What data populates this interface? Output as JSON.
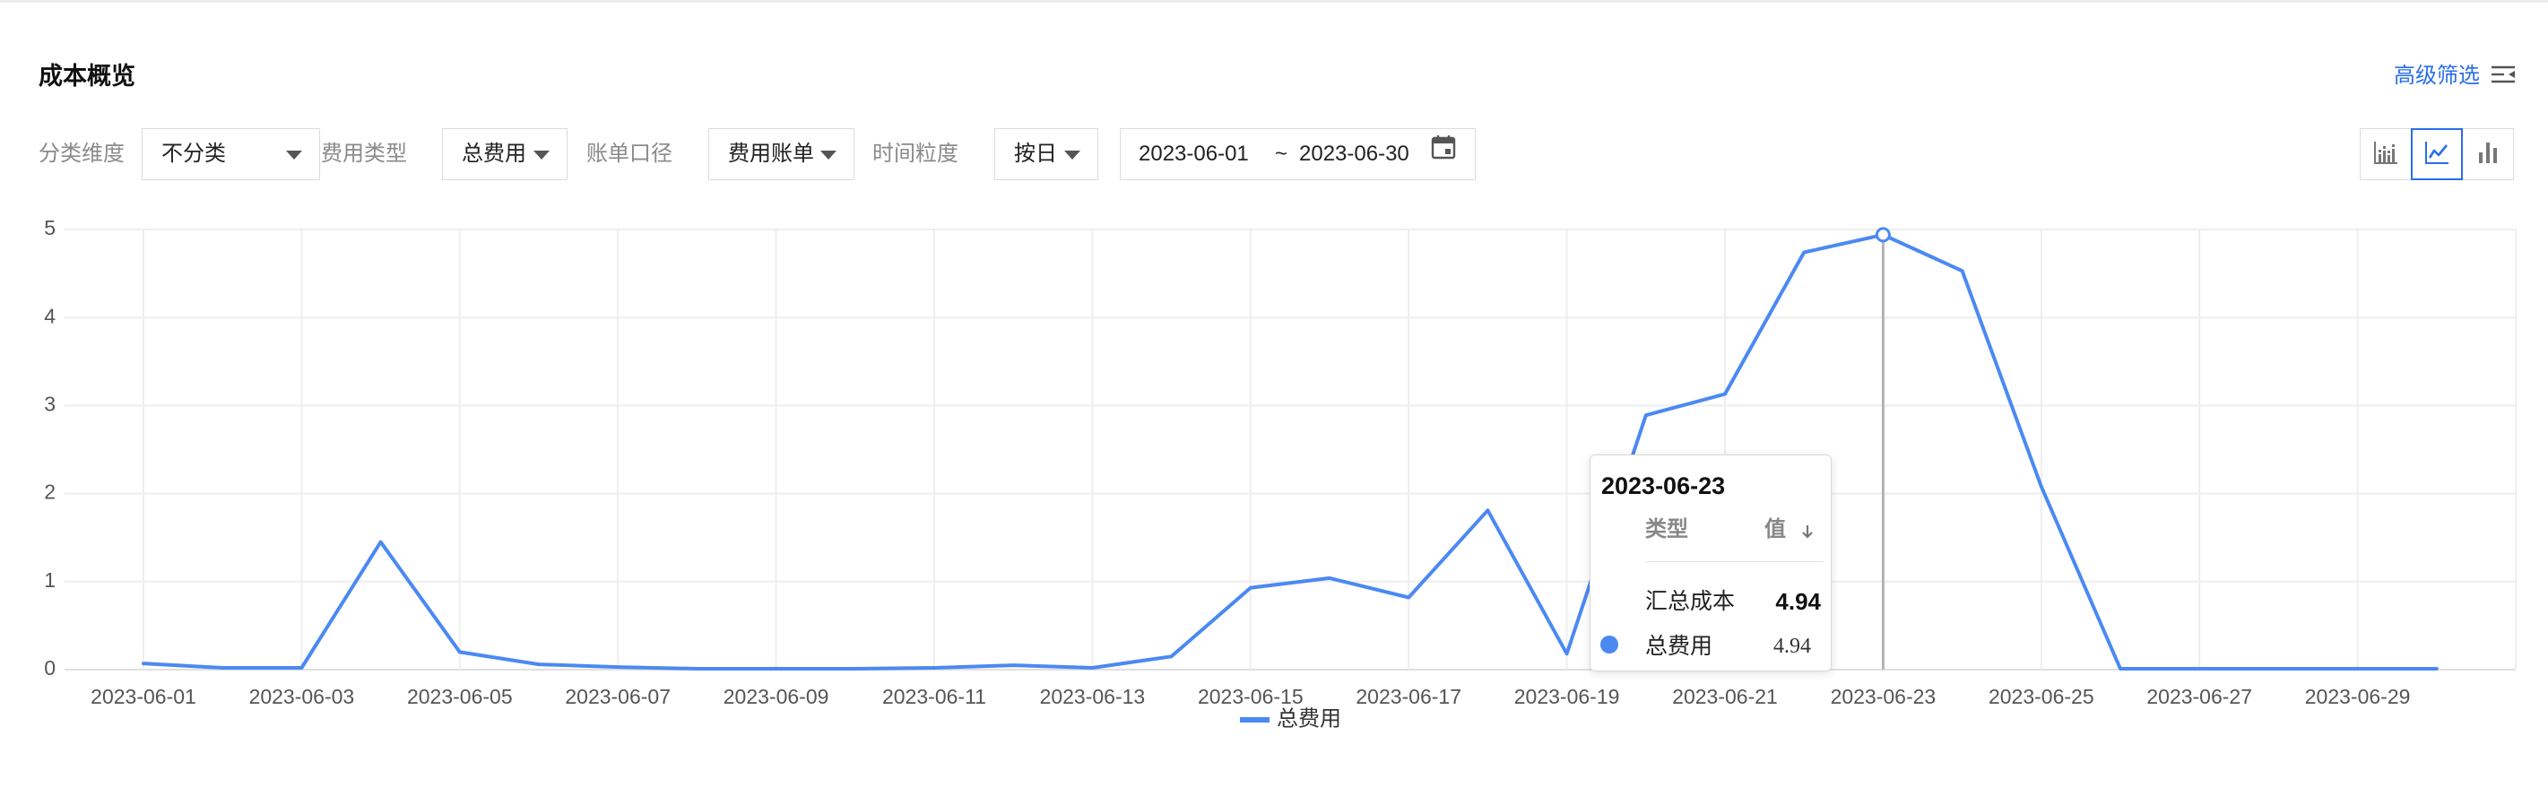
{
  "header": {
    "title": "成本概览",
    "advanced_filter_label": "高级筛选",
    "advanced_filter_icon": "filter-list-icon"
  },
  "filters": [
    {
      "label": "分类维度",
      "value": "不分类"
    },
    {
      "label": "费用类型",
      "value": "总费用"
    },
    {
      "label": "账单口径",
      "value": "费用账单"
    },
    {
      "label": "时间粒度",
      "value": "按日"
    }
  ],
  "date_range": {
    "start": "2023-06-01",
    "separator": "~",
    "end": "2023-06-30",
    "icon": "calendar-icon"
  },
  "chart_type_toggle": {
    "options": [
      {
        "icon": "stacked-bar-chart-icon",
        "active": false
      },
      {
        "icon": "line-chart-icon",
        "active": true
      },
      {
        "icon": "bar-chart-icon",
        "active": false
      }
    ]
  },
  "colors": {
    "accent": "#2a6ee9",
    "series": "#4b89f2",
    "gridline": "#eeeeee",
    "muted_label": "#8a8a8a"
  },
  "chart_data": {
    "type": "line",
    "x": [
      "2023-06-01",
      "2023-06-02",
      "2023-06-03",
      "2023-06-04",
      "2023-06-05",
      "2023-06-06",
      "2023-06-07",
      "2023-06-08",
      "2023-06-09",
      "2023-06-10",
      "2023-06-11",
      "2023-06-12",
      "2023-06-13",
      "2023-06-14",
      "2023-06-15",
      "2023-06-16",
      "2023-06-17",
      "2023-06-18",
      "2023-06-19",
      "2023-06-20",
      "2023-06-21",
      "2023-06-22",
      "2023-06-23",
      "2023-06-24",
      "2023-06-25",
      "2023-06-26",
      "2023-06-27",
      "2023-06-28",
      "2023-06-29",
      "2023-06-30"
    ],
    "xticks": [
      "2023-06-01",
      "2023-06-03",
      "2023-06-05",
      "2023-06-07",
      "2023-06-09",
      "2023-06-11",
      "2023-06-13",
      "2023-06-15",
      "2023-06-17",
      "2023-06-19",
      "2023-06-21",
      "2023-06-23",
      "2023-06-25",
      "2023-06-27",
      "2023-06-29"
    ],
    "series": [
      {
        "name": "总费用",
        "color": "#4b89f2",
        "values": [
          0.07,
          0.02,
          0.02,
          1.45,
          0.2,
          0.06,
          0.03,
          0.01,
          0.01,
          0.01,
          0.02,
          0.05,
          0.02,
          0.15,
          0.93,
          1.04,
          0.82,
          1.81,
          0.18,
          2.89,
          3.13,
          4.74,
          4.94,
          4.53,
          2.08,
          0.01,
          0.01,
          0.01,
          0.01,
          0.01
        ]
      }
    ],
    "yticks": [
      0,
      1,
      2,
      3,
      4,
      5
    ],
    "ylim": [
      0,
      5
    ],
    "grid": true,
    "legend": "bottom-center",
    "highlighted_x": "2023-06-23"
  },
  "tooltip": {
    "title": "2023-06-23",
    "header_type": "类型",
    "header_value": "值",
    "sort_icon": "sort-desc-icon",
    "summary_label": "汇总成本",
    "summary_value": "4.94",
    "rows": [
      {
        "name": "总费用",
        "value": "4.94"
      }
    ]
  }
}
